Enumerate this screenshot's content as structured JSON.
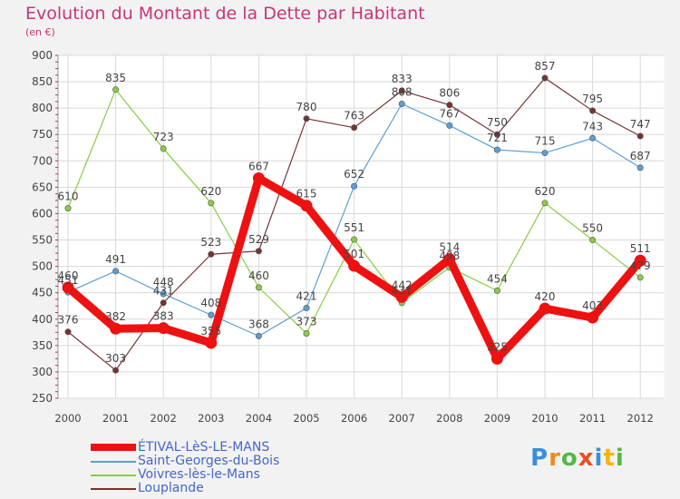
{
  "header": {
    "title": "Evolution du Montant de la Dette par Habitant",
    "subtitle": "(en €)"
  },
  "logo": {
    "letters": [
      "P",
      "r",
      "o",
      "x",
      "i",
      "t",
      "i"
    ],
    "colors": [
      "#3a8fd8",
      "#f08a1c",
      "#55b848",
      "#e8501e",
      "#3a8fd8",
      "#f5b50c",
      "#55b848"
    ]
  },
  "chart_data": {
    "type": "line",
    "x": [
      "2000",
      "2001",
      "2002",
      "2003",
      "2004",
      "2005",
      "2006",
      "2007",
      "2008",
      "2009",
      "2010",
      "2011",
      "2012"
    ],
    "ylim": [
      250,
      900
    ],
    "yticks": [
      "250",
      "300",
      "350",
      "400",
      "450",
      "500",
      "550",
      "600",
      "650",
      "700",
      "750",
      "800",
      "850",
      "900"
    ],
    "grid": true,
    "legend_position": "bottom-left",
    "series": [
      {
        "name": "ÉTIVAL-LèS-LE-MANS",
        "color": "#ee1111",
        "emphasis": true,
        "values": [
          460,
          382,
          383,
          355,
          667,
          615,
          501,
          442,
          514,
          325,
          420,
          403,
          511
        ],
        "labels": [
          "460",
          "382",
          "383",
          "355",
          "667",
          "615",
          "501",
          "442",
          "514",
          "325",
          "420",
          "403",
          "511"
        ]
      },
      {
        "name": "Saint-Georges-du-Bois",
        "color": "#5b9fd6",
        "values": [
          451,
          491,
          448,
          408,
          368,
          421,
          652,
          808,
          767,
          721,
          715,
          743,
          687
        ],
        "labels": [
          "451",
          "491",
          "448",
          "408",
          "368",
          "421",
          "652",
          "808",
          "767",
          "721",
          "715",
          "743",
          "687"
        ]
      },
      {
        "name": "Voivres-lès-le-Mans",
        "color": "#88cc44",
        "values": [
          610,
          835,
          723,
          620,
          460,
          373,
          551,
          431,
          498,
          454,
          620,
          550,
          479
        ],
        "labels": [
          "610",
          "835",
          "723",
          "620",
          "460",
          "373",
          "551",
          "431",
          "498",
          "454",
          "620",
          "550",
          "479"
        ]
      },
      {
        "name": "Louplande",
        "color": "#773333",
        "values": [
          376,
          303,
          431,
          523,
          529,
          780,
          763,
          833,
          806,
          750,
          857,
          795,
          747
        ],
        "labels": [
          "376",
          "303",
          "431",
          "523",
          "529",
          "780",
          "763",
          "833",
          "806",
          "750",
          "857",
          "795",
          "747"
        ]
      }
    ]
  }
}
